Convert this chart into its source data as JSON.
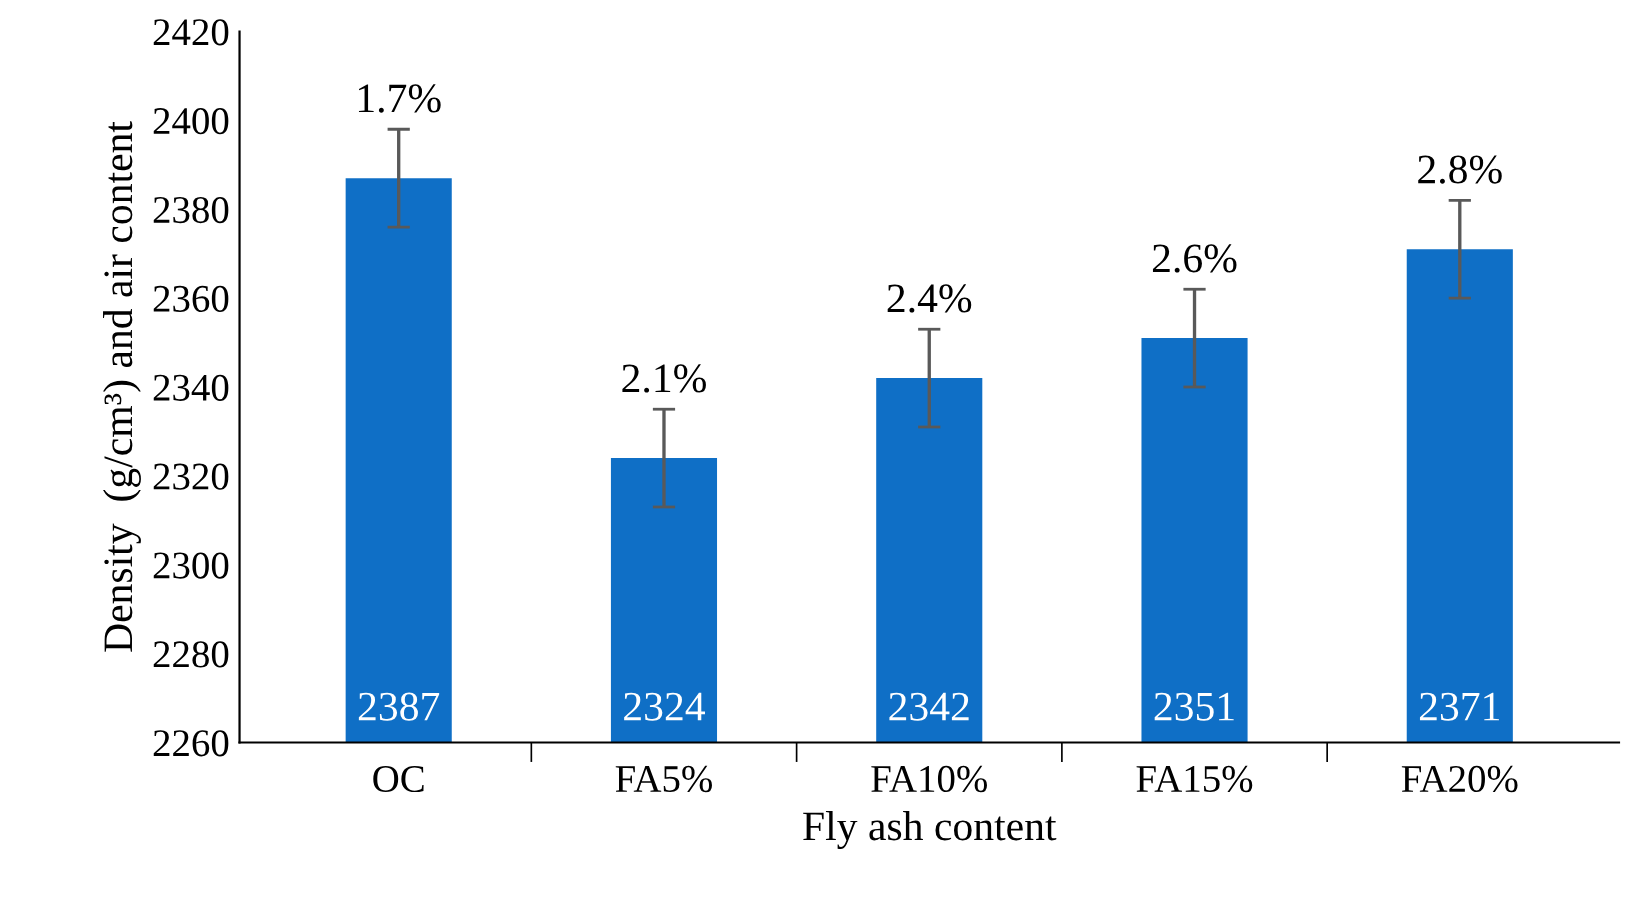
{
  "chart_data": {
    "type": "bar",
    "xlabel": "Fly ash content",
    "ylabel": "Density  (g/cm³) and air content",
    "categories": [
      "OC",
      "FA5%",
      "FA10%",
      "FA15%",
      "FA20%"
    ],
    "values": [
      2387,
      2324,
      2342,
      2351,
      2371
    ],
    "errors": [
      11,
      11,
      11,
      11,
      11
    ],
    "color": "#0f6fc6",
    "data_labels": true,
    "annotations": [
      "1.7%",
      "2.1%",
      "2.4%",
      "2.6%",
      "2.8%"
    ],
    "ylim": [
      2260,
      2420
    ],
    "yticks": [
      2260,
      2280,
      2300,
      2320,
      2340,
      2360,
      2380,
      2400,
      2420
    ],
    "grid": false,
    "legend": false
  }
}
